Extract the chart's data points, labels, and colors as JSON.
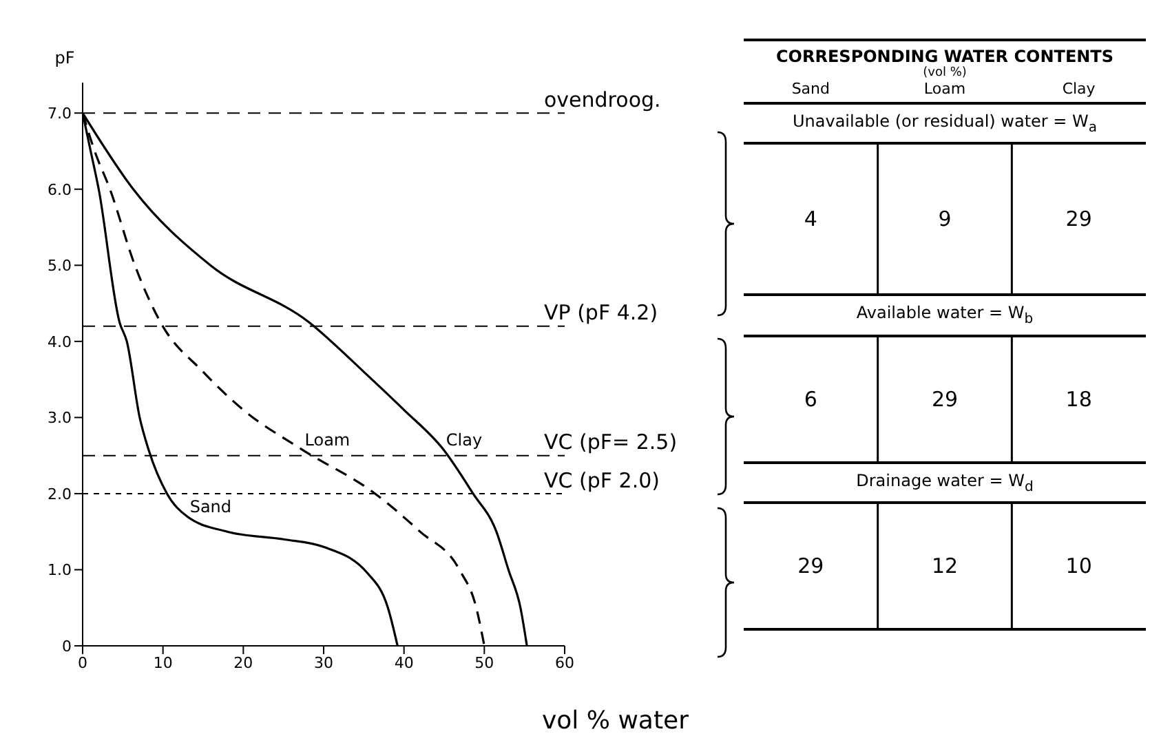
{
  "chart_data": [
    {
      "type": "line",
      "xlabel": "vol % water",
      "ylabel": "pF",
      "xlim": [
        0,
        60
      ],
      "xticks": [
        0,
        10,
        20,
        30,
        40,
        50,
        60
      ],
      "ylim": [
        0,
        7.4
      ],
      "yticks": [
        0,
        {
          "value": 1,
          "label": "1.0"
        },
        {
          "value": 2,
          "label": "2.0"
        },
        {
          "value": 3,
          "label": "3.0"
        },
        {
          "value": 4,
          "label": "4.0"
        },
        {
          "value": 5,
          "label": "5.0"
        },
        {
          "value": 6,
          "label": "6.0"
        },
        {
          "value": 7,
          "label": "7.0"
        }
      ],
      "marker": "none",
      "series": [
        {
          "name": "Sand",
          "color": "#000000",
          "line_style": "solid",
          "x": [
            0,
            1,
            2,
            4.6,
            5.5,
            7.1,
            8.2,
            10.5,
            13,
            18,
            25,
            30,
            35.5,
            38,
            39.2
          ],
          "values": [
            7,
            6.5,
            6,
            4.25,
            4,
            3,
            2.58,
            2,
            1.7,
            1.5,
            1.4,
            1.3,
            0.95,
            0.5,
            0
          ]
        },
        {
          "name": "Loam",
          "color": "#000000",
          "line_style": "dashed",
          "x": [
            0,
            1.5,
            3.4,
            6.5,
            9.7,
            15,
            20,
            27.3,
            36.4,
            42,
            46.9,
            49,
            50
          ],
          "values": [
            7,
            6.5,
            6,
            5,
            4.25,
            3.6,
            3.1,
            2.58,
            2,
            1.5,
            1,
            0.5,
            0
          ]
        },
        {
          "name": "Clay",
          "color": "#000000",
          "line_style": "solid",
          "x": [
            0,
            6.3,
            15.9,
            28.2,
            35,
            40,
            44.9,
            48.6,
            51.5,
            53,
            54.5,
            55.3
          ],
          "values": [
            7,
            6,
            5,
            4.25,
            3.6,
            3.1,
            2.58,
            2,
            1.5,
            1,
            0.5,
            0
          ]
        }
      ],
      "ref_lines": [
        {
          "axis": "y",
          "value": 7,
          "label": "ovendroog.",
          "line_style": "dashed"
        },
        {
          "axis": "y",
          "value": 4.2,
          "label": "VP (pF 4.2)",
          "line_style": "dashed"
        },
        {
          "axis": "y",
          "value": 2.5,
          "label": "VC (pF= 2.5)",
          "line_style": "dashed"
        },
        {
          "axis": "y",
          "value": 2,
          "label": "VC (pF 2.0)",
          "line_style": "dotted"
        }
      ]
    },
    {
      "type": "other",
      "title": "CORRESPONDING WATER CONTENTS",
      "subtitle": "(vol %)",
      "categories": [
        "Sand",
        "Loam",
        "Clay"
      ],
      "y_categories": [
        "Unavailable (or residual) water = W$_{a}$",
        "Available water = W$_{b}$",
        "Drainage water = W$_{d}$"
      ],
      "annotations": [
        "4",
        "9",
        "29",
        "6",
        "29",
        "18",
        "29",
        "12",
        "10"
      ]
    }
  ]
}
